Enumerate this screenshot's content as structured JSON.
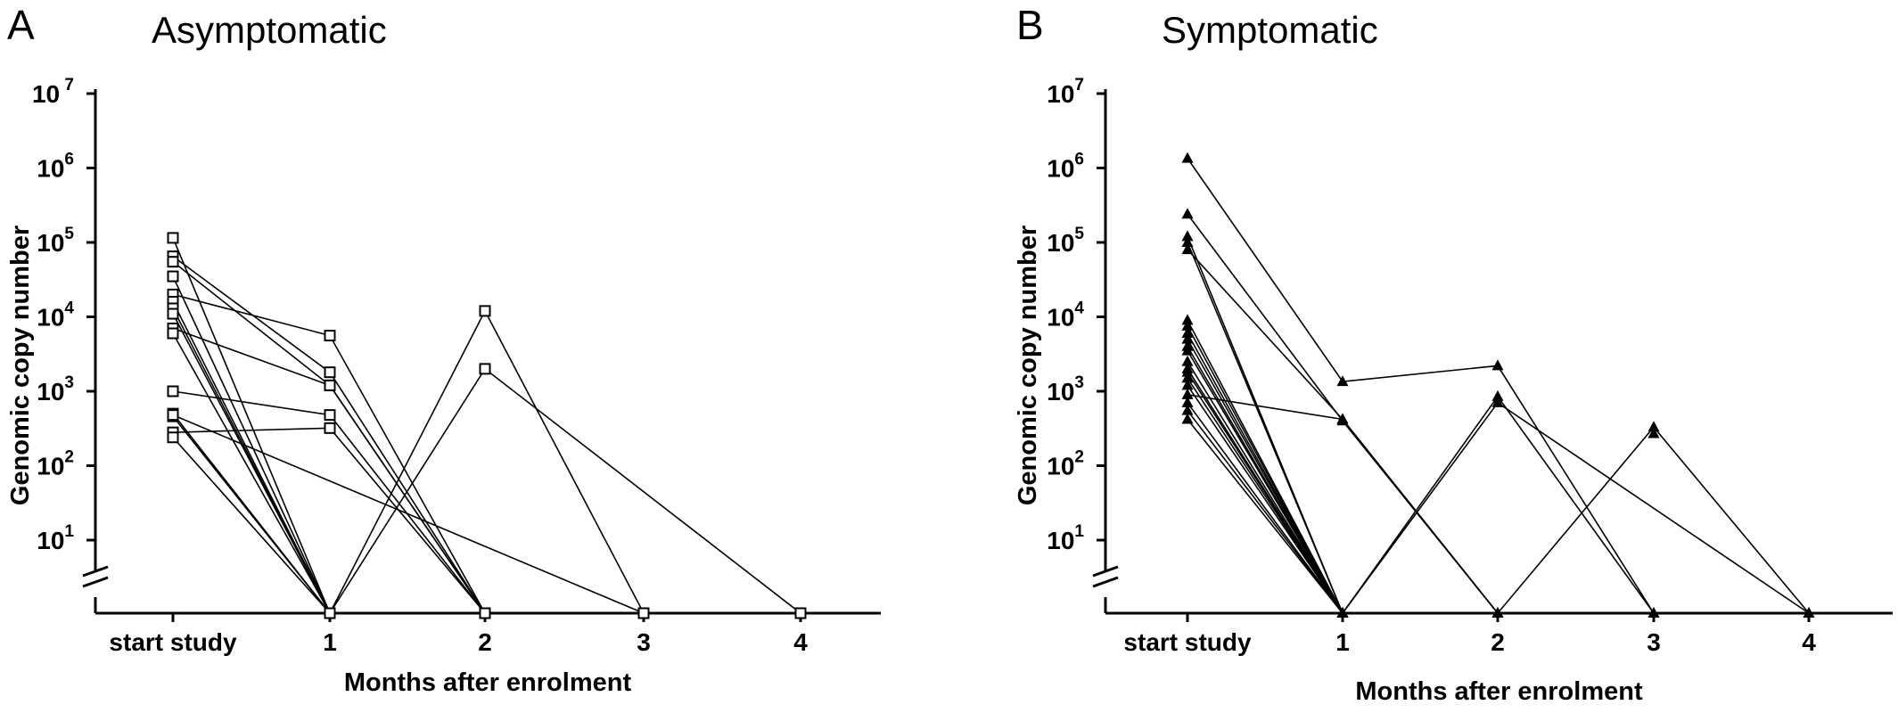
{
  "chart_data": [
    {
      "type": "line",
      "panel_letter": "A",
      "title": "Asymptomatic",
      "xlabel": "Months after enrolment",
      "ylabel": "Genomic copy number",
      "categories": [
        "start study",
        "1",
        "2",
        "3",
        "4"
      ],
      "y_scale": "log",
      "y_ticks": [
        {
          "base": "10",
          "exp": "1",
          "value": 10
        },
        {
          "base": "10",
          "exp": "2",
          "value": 100
        },
        {
          "base": "10",
          "exp": "3",
          "value": 1000
        },
        {
          "base": "10",
          "exp": "4",
          "value": 10000
        },
        {
          "base": "10",
          "exp": "5",
          "value": 100000
        },
        {
          "base": "10",
          "exp": "6",
          "value": 1000000
        },
        {
          "base": "10",
          "exp": " 7",
          "value": 10000000
        }
      ],
      "ylim": [
        1,
        10000000
      ],
      "axis_break": true,
      "grid": false,
      "marker": "open-square",
      "series": [
        {
          "values": [
            115000,
            1,
            null,
            null,
            null
          ]
        },
        {
          "values": [
            65000,
            1800,
            1,
            null,
            null
          ]
        },
        {
          "values": [
            55000,
            1200,
            1,
            null,
            null
          ]
        },
        {
          "values": [
            35000,
            1,
            null,
            null,
            null
          ]
        },
        {
          "values": [
            20000,
            5600,
            1,
            null,
            null
          ]
        },
        {
          "values": [
            16000,
            1,
            null,
            null,
            null
          ]
        },
        {
          "values": [
            13000,
            1,
            null,
            null,
            null
          ]
        },
        {
          "values": [
            11000,
            1,
            null,
            null,
            null
          ]
        },
        {
          "values": [
            7000,
            1200,
            1,
            null,
            null
          ]
        },
        {
          "values": [
            6000,
            1,
            null,
            null,
            null
          ]
        },
        {
          "values": [
            1000,
            480,
            1,
            null,
            null
          ]
        },
        {
          "values": [
            500,
            1,
            12000,
            1,
            null
          ]
        },
        {
          "values": [
            280,
            320,
            1,
            null,
            null
          ]
        },
        {
          "values": [
            240,
            1,
            null,
            null,
            null
          ]
        },
        {
          "values": [
            460,
            1,
            null,
            null,
            null
          ]
        },
        {
          "values": [
            null,
            1,
            2000,
            null,
            1
          ]
        },
        {
          "values": [
            480,
            null,
            null,
            1,
            null
          ]
        }
      ]
    },
    {
      "type": "line",
      "panel_letter": "B",
      "title": "Symptomatic",
      "xlabel": "Months after enrolment",
      "ylabel": "Genomic copy number",
      "categories": [
        "start study",
        "1",
        "2",
        "3",
        "4"
      ],
      "y_scale": "log",
      "y_ticks": [
        {
          "base": "10",
          "exp": "1",
          "value": 10
        },
        {
          "base": "10",
          "exp": "2",
          "value": 100
        },
        {
          "base": "10",
          "exp": "3",
          "value": 1000
        },
        {
          "base": "10",
          "exp": "4",
          "value": 10000
        },
        {
          "base": "10",
          "exp": "5",
          "value": 100000
        },
        {
          "base": "10",
          "exp": "6",
          "value": 1000000
        },
        {
          "base": "10",
          "exp": "7",
          "value": 10000000
        }
      ],
      "ylim": [
        1,
        10000000
      ],
      "axis_break": true,
      "grid": false,
      "marker": "filled-triangle",
      "series": [
        {
          "values": [
            1350000,
            1350,
            2200,
            1,
            null
          ]
        },
        {
          "values": [
            240000,
            400,
            1,
            null,
            null
          ]
        },
        {
          "values": [
            120000,
            1,
            null,
            null,
            null
          ]
        },
        {
          "values": [
            100000,
            1,
            null,
            null,
            null
          ]
        },
        {
          "values": [
            80000,
            420,
            1,
            null,
            null
          ]
        },
        {
          "values": [
            9000,
            1,
            null,
            null,
            null
          ]
        },
        {
          "values": [
            7500,
            1,
            null,
            null,
            null
          ]
        },
        {
          "values": [
            6000,
            1,
            null,
            null,
            null
          ]
        },
        {
          "values": [
            5000,
            1,
            null,
            null,
            null
          ]
        },
        {
          "values": [
            4000,
            1,
            null,
            null,
            null
          ]
        },
        {
          "values": [
            3500,
            1,
            null,
            null,
            null
          ]
        },
        {
          "values": [
            2500,
            1,
            null,
            null,
            null
          ]
        },
        {
          "values": [
            2000,
            1,
            null,
            null,
            null
          ]
        },
        {
          "values": [
            1800,
            1,
            null,
            null,
            null
          ]
        },
        {
          "values": [
            1500,
            1,
            null,
            null,
            null
          ]
        },
        {
          "values": [
            1200,
            1,
            null,
            null,
            null
          ]
        },
        {
          "values": [
            900,
            420,
            1,
            null,
            null
          ]
        },
        {
          "values": [
            700,
            1,
            null,
            null,
            null
          ]
        },
        {
          "values": [
            550,
            1,
            null,
            null,
            null
          ]
        },
        {
          "values": [
            420,
            1,
            null,
            null,
            null
          ]
        },
        {
          "values": [
            null,
            1,
            850,
            1,
            null
          ]
        },
        {
          "values": [
            null,
            1,
            700,
            null,
            1
          ]
        },
        {
          "values": [
            null,
            null,
            1,
            330,
            1
          ]
        },
        {
          "values": [
            null,
            null,
            null,
            270,
            null
          ]
        }
      ]
    }
  ]
}
